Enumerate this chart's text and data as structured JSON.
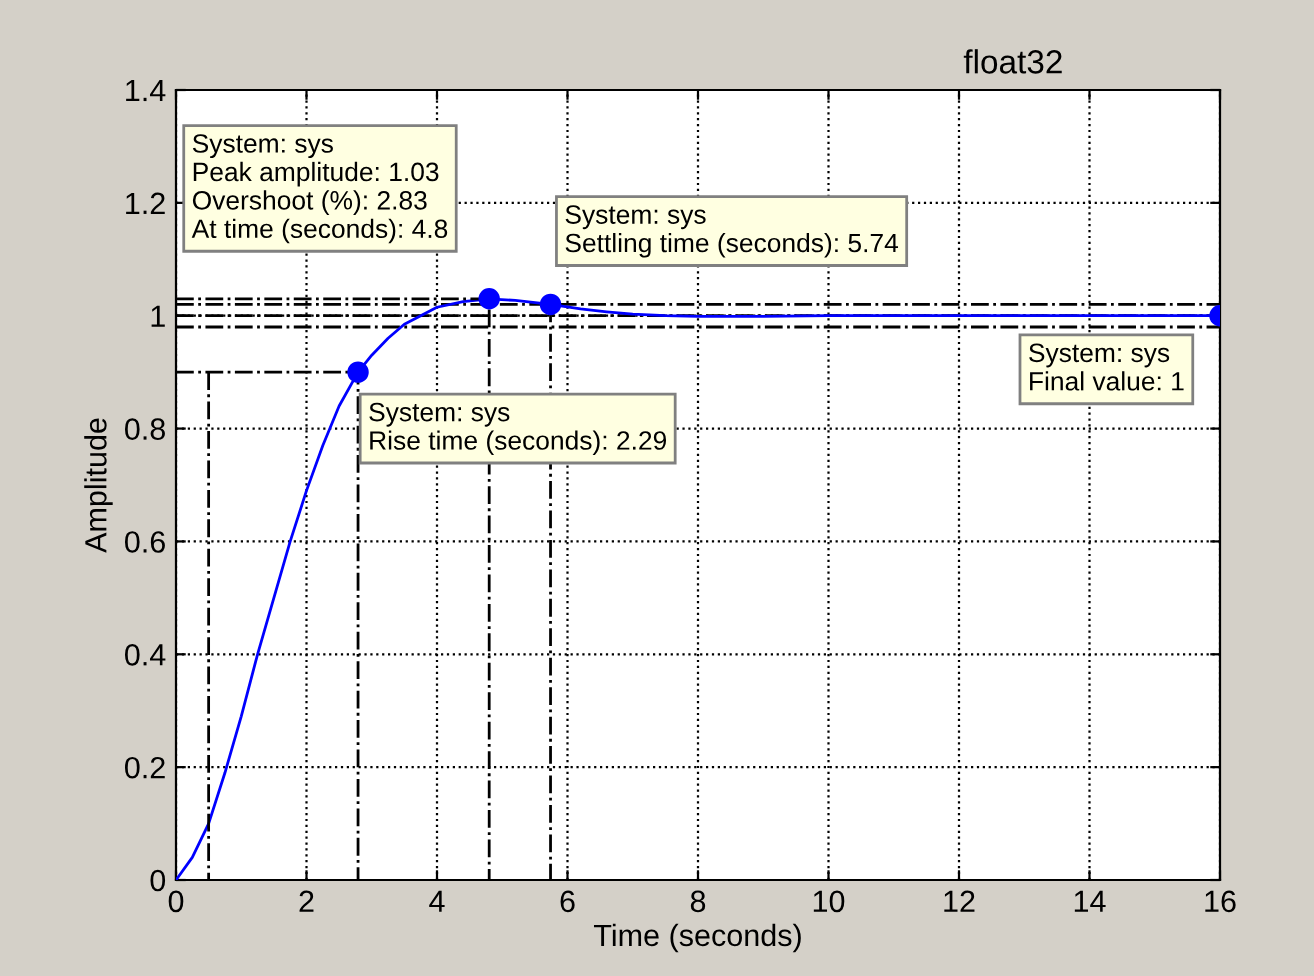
{
  "chart_data": {
    "type": "line",
    "title": "float32",
    "xlabel": "Time (seconds)",
    "ylabel": "Amplitude",
    "xlim": [
      0,
      16
    ],
    "xticks": [
      0,
      2,
      4,
      6,
      8,
      10,
      12,
      14,
      16
    ],
    "ylim": [
      0,
      1.4
    ],
    "yticks": [
      0,
      0.2,
      0.4,
      0.6,
      0.8,
      1,
      1.2,
      1.4
    ],
    "grid": true,
    "series": [
      {
        "color": "#0000ff",
        "line_style": "solid",
        "x": [
          0,
          0.25,
          0.5,
          0.75,
          1,
          1.25,
          1.5,
          1.75,
          2,
          2.25,
          2.5,
          2.79,
          3,
          3.25,
          3.5,
          3.75,
          4,
          4.4,
          4.8,
          5.2,
          5.74,
          6.2,
          6.6,
          7,
          7.5,
          8,
          9,
          10,
          11,
          12,
          13,
          14,
          15,
          16
        ],
        "values": [
          0,
          0.04,
          0.1,
          0.19,
          0.29,
          0.4,
          0.5,
          0.6,
          0.69,
          0.77,
          0.84,
          0.9,
          0.93,
          0.96,
          0.985,
          1.0,
          1.015,
          1.025,
          1.03,
          1.027,
          1.02,
          1.012,
          1.007,
          1.003,
          1.0,
          0.999,
          0.999,
          1.0,
          1.0,
          1.0,
          1.0,
          1.0,
          1.0,
          1.0
        ]
      },
      {
        "type": "scatter",
        "color": "#0000ff",
        "marker": "circle",
        "x": [
          2.79,
          4.8,
          5.74,
          16
        ],
        "values": [
          0.9,
          1.03,
          1.02,
          1
        ]
      },
      {
        "color": "#000000",
        "line_style": "dashdot",
        "x": [
          0,
          2.79,
          2.79
        ],
        "values": [
          0.9,
          0.9,
          0
        ]
      },
      {
        "color": "#000000",
        "line_style": "dashdot",
        "x": [
          0.5,
          0.5
        ],
        "values": [
          0.9,
          0
        ]
      },
      {
        "color": "#000000",
        "line_style": "dashdot",
        "x": [
          0,
          4.8,
          4.8
        ],
        "values": [
          1.03,
          1.03,
          0
        ]
      },
      {
        "color": "#000000",
        "line_style": "dashdot",
        "x": [
          5.74,
          5.74
        ],
        "values": [
          1.02,
          0
        ]
      }
    ],
    "ref_lines": [
      {
        "axis": "y",
        "value": 1.02,
        "color": "#000000",
        "line_style": "dashdot"
      },
      {
        "axis": "y",
        "value": 0.98,
        "color": "#000000",
        "line_style": "dashdot"
      },
      {
        "axis": "y",
        "value": 1,
        "color": "#000000",
        "line_style": "dashdot"
      }
    ],
    "annotations": [
      "System: sys\nPeak amplitude: 1.03\nOvershoot (%): 2.83\nAt time (seconds): 4.8",
      "System: sys\nSettling time (seconds): 5.74",
      "System: sys\nRise time (seconds): 2.29",
      "System: sys\nFinal value: 1"
    ]
  }
}
